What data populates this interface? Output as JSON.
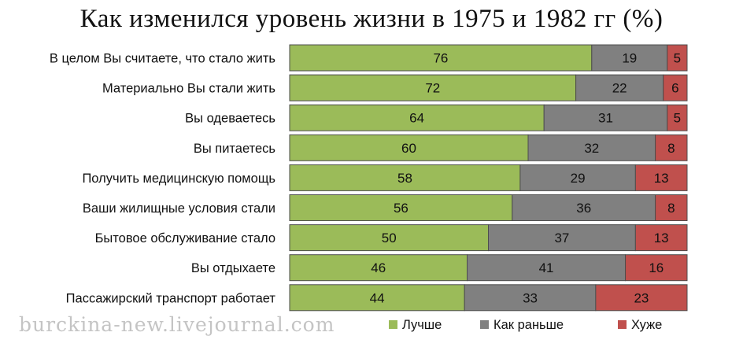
{
  "title": "Как изменился уровень жизни в 1975 и 1982 гг (%)",
  "watermark": "burckina-new.livejournal.com",
  "colors": {
    "better": "#9bbb59",
    "same": "#808080",
    "worse": "#c0504d"
  },
  "chart_data": {
    "type": "bar",
    "orientation": "horizontal",
    "stacked": true,
    "title": "Как изменился уровень жизни в 1975 и 1982 гг (%)",
    "categories": [
      "В целом Вы считаете, что стало жить",
      "Материально Вы стали жить",
      "Вы одеваетесь",
      "Вы питаетесь",
      "Получить медицинскую помощь",
      "Ваши жилищные условия стали",
      "Бытовое обслуживание стало",
      "Вы отдыхаете",
      "Пассажирский транспорт работает"
    ],
    "series": [
      {
        "name": "Лучше",
        "color": "#9bbb59",
        "values": [
          76,
          72,
          64,
          60,
          58,
          56,
          50,
          46,
          44
        ]
      },
      {
        "name": "Как раньше",
        "color": "#808080",
        "values": [
          19,
          22,
          31,
          32,
          29,
          36,
          37,
          41,
          33
        ]
      },
      {
        "name": "Хуже",
        "color": "#c0504d",
        "values": [
          5,
          6,
          5,
          8,
          13,
          8,
          13,
          16,
          23
        ]
      }
    ],
    "legend_position": "bottom",
    "grid": false
  }
}
